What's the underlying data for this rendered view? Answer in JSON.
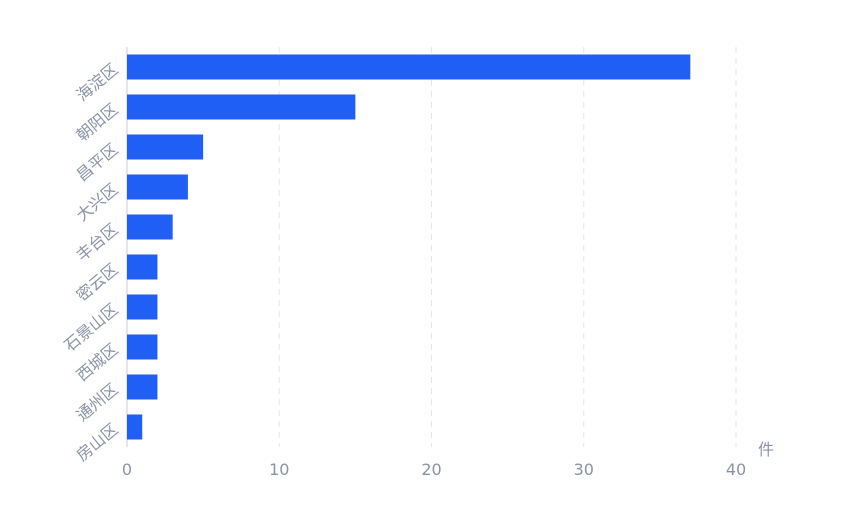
{
  "chart_data": {
    "type": "bar",
    "orientation": "horizontal",
    "categories": [
      "海淀区",
      "朝阳区",
      "昌平区",
      "大兴区",
      "丰台区",
      "密云区",
      "石景山区",
      "西城区",
      "通州区",
      "房山区"
    ],
    "values": [
      37,
      15,
      5,
      4,
      3,
      2,
      2,
      2,
      2,
      1
    ],
    "x_unit": "件",
    "xlim": [
      0,
      40
    ],
    "x_ticks": [
      0,
      10,
      20,
      30,
      40
    ],
    "grid": true,
    "colors": {
      "bar": "#1f5ff5",
      "text": "#8a93a6",
      "grid": "#e3e6ec",
      "axis": "#c9ced8"
    }
  }
}
